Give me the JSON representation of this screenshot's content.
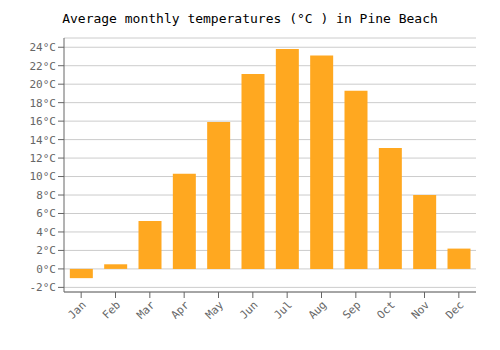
{
  "chart_data": {
    "type": "bar",
    "title": "Average monthly temperatures (°C ) in Pine Beach",
    "categories": [
      "Jan",
      "Feb",
      "Mar",
      "Apr",
      "May",
      "Jun",
      "Jul",
      "Aug",
      "Sep",
      "Oct",
      "Nov",
      "Dec"
    ],
    "values": [
      -1.0,
      0.5,
      5.2,
      10.3,
      15.9,
      21.1,
      23.8,
      23.1,
      19.3,
      13.1,
      8.0,
      2.2
    ],
    "color": "#FFA820",
    "ylim": [
      -2.5,
      25
    ],
    "yticks": [
      {
        "value": -2,
        "label": "-2°C"
      },
      {
        "value": 0,
        "label": "0°C"
      },
      {
        "value": 2,
        "label": "2°C"
      },
      {
        "value": 4,
        "label": "4°C"
      },
      {
        "value": 6,
        "label": "6°C"
      },
      {
        "value": 8,
        "label": "8°C"
      },
      {
        "value": 10,
        "label": "10°C"
      },
      {
        "value": 12,
        "label": "12°C"
      },
      {
        "value": 14,
        "label": "14°C"
      },
      {
        "value": 16,
        "label": "16°C"
      },
      {
        "value": 18,
        "label": "18°C"
      },
      {
        "value": 20,
        "label": "20°C"
      },
      {
        "value": 22,
        "label": "22°C"
      },
      {
        "value": 24,
        "label": "24°C"
      }
    ],
    "grid": true
  }
}
